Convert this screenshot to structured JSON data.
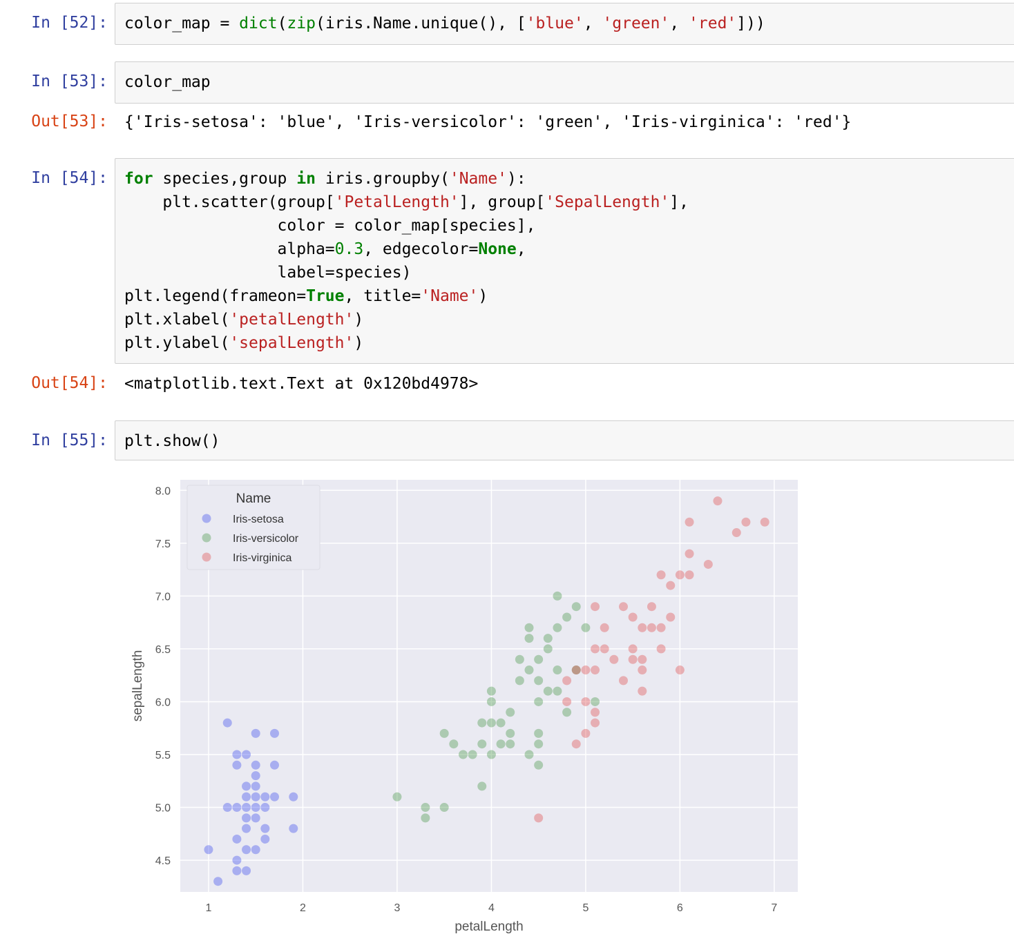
{
  "cells": {
    "c52": {
      "prompt": "In [52]:",
      "code": "color_map = dict(zip(iris.Name.unique(), ['blue', 'green', 'red']))"
    },
    "c53": {
      "prompt": "In [53]:",
      "code": "color_map",
      "out_prompt": "Out[53]:",
      "output": "{'Iris-setosa': 'blue', 'Iris-versicolor': 'green', 'Iris-virginica': 'red'}"
    },
    "c54": {
      "prompt": "In [54]:",
      "code_lines": [
        "for species,group in iris.groupby('Name'):",
        "    plt.scatter(group['PetalLength'], group['SepalLength'],",
        "                color = color_map[species],",
        "                alpha=0.3, edgecolor=None,",
        "                label=species)",
        "plt.legend(frameon=True, title='Name')",
        "plt.xlabel('petalLength')",
        "plt.ylabel('sepalLength')"
      ],
      "out_prompt": "Out[54]:",
      "output": "<matplotlib.text.Text at 0x120bd4978>"
    },
    "c55": {
      "prompt": "In [55]:",
      "code": "plt.show()"
    }
  },
  "chart_data": {
    "type": "scatter",
    "xlabel": "petalLength",
    "ylabel": "sepalLength",
    "xlim": [
      0.7,
      7.25
    ],
    "ylim": [
      4.2,
      8.1
    ],
    "xticks": [
      "1",
      "2",
      "3",
      "4",
      "5",
      "6",
      "7"
    ],
    "yticks": [
      "4.5",
      "5.0",
      "5.5",
      "6.0",
      "6.5",
      "7.0",
      "7.5",
      "8.0"
    ],
    "grid": true,
    "legend": {
      "title": "Name",
      "placement": "top-left"
    },
    "series": [
      {
        "name": "Iris-setosa",
        "color": "#2233ee",
        "points": [
          [
            1.0,
            4.6
          ],
          [
            1.1,
            4.3
          ],
          [
            1.2,
            5.8
          ],
          [
            1.2,
            5.0
          ],
          [
            1.3,
            4.4
          ],
          [
            1.3,
            4.5
          ],
          [
            1.3,
            4.7
          ],
          [
            1.3,
            5.0
          ],
          [
            1.3,
            5.4
          ],
          [
            1.3,
            5.5
          ],
          [
            1.4,
            4.4
          ],
          [
            1.4,
            4.6
          ],
          [
            1.4,
            4.8
          ],
          [
            1.4,
            4.9
          ],
          [
            1.4,
            5.0
          ],
          [
            1.4,
            5.1
          ],
          [
            1.4,
            5.2
          ],
          [
            1.4,
            5.5
          ],
          [
            1.5,
            4.6
          ],
          [
            1.5,
            4.9
          ],
          [
            1.5,
            5.0
          ],
          [
            1.5,
            5.1
          ],
          [
            1.5,
            5.2
          ],
          [
            1.5,
            5.3
          ],
          [
            1.5,
            5.4
          ],
          [
            1.5,
            5.7
          ],
          [
            1.6,
            4.7
          ],
          [
            1.6,
            4.8
          ],
          [
            1.6,
            5.0
          ],
          [
            1.6,
            5.1
          ],
          [
            1.7,
            5.1
          ],
          [
            1.7,
            5.4
          ],
          [
            1.7,
            5.7
          ],
          [
            1.9,
            4.8
          ],
          [
            1.9,
            5.1
          ]
        ]
      },
      {
        "name": "Iris-versicolor",
        "color": "#2d8a2d",
        "points": [
          [
            3.0,
            5.1
          ],
          [
            3.3,
            4.9
          ],
          [
            3.3,
            5.0
          ],
          [
            3.5,
            5.0
          ],
          [
            3.5,
            5.7
          ],
          [
            3.6,
            5.6
          ],
          [
            3.7,
            5.5
          ],
          [
            3.8,
            5.5
          ],
          [
            3.9,
            5.2
          ],
          [
            3.9,
            5.6
          ],
          [
            3.9,
            5.8
          ],
          [
            4.0,
            5.5
          ],
          [
            4.0,
            5.8
          ],
          [
            4.0,
            6.0
          ],
          [
            4.0,
            6.1
          ],
          [
            4.1,
            5.6
          ],
          [
            4.1,
            5.8
          ],
          [
            4.2,
            5.6
          ],
          [
            4.2,
            5.7
          ],
          [
            4.2,
            5.9
          ],
          [
            4.3,
            6.2
          ],
          [
            4.3,
            6.4
          ],
          [
            4.4,
            5.5
          ],
          [
            4.4,
            6.3
          ],
          [
            4.4,
            6.6
          ],
          [
            4.4,
            6.7
          ],
          [
            4.5,
            5.4
          ],
          [
            4.5,
            5.6
          ],
          [
            4.5,
            5.7
          ],
          [
            4.5,
            6.0
          ],
          [
            4.5,
            6.2
          ],
          [
            4.5,
            6.4
          ],
          [
            4.6,
            6.1
          ],
          [
            4.6,
            6.5
          ],
          [
            4.6,
            6.6
          ],
          [
            4.7,
            6.1
          ],
          [
            4.7,
            6.3
          ],
          [
            4.7,
            6.7
          ],
          [
            4.7,
            7.0
          ],
          [
            4.8,
            5.9
          ],
          [
            4.8,
            6.8
          ],
          [
            4.9,
            6.3
          ],
          [
            4.9,
            6.9
          ],
          [
            5.0,
            6.7
          ],
          [
            5.1,
            6.0
          ]
        ]
      },
      {
        "name": "Iris-virginica",
        "color": "#dd3333",
        "points": [
          [
            4.5,
            4.9
          ],
          [
            4.8,
            6.0
          ],
          [
            4.8,
            6.2
          ],
          [
            4.9,
            5.6
          ],
          [
            4.9,
            6.3
          ],
          [
            5.0,
            5.7
          ],
          [
            5.0,
            6.0
          ],
          [
            5.0,
            6.3
          ],
          [
            5.1,
            5.8
          ],
          [
            5.1,
            5.9
          ],
          [
            5.1,
            6.3
          ],
          [
            5.1,
            6.5
          ],
          [
            5.1,
            6.9
          ],
          [
            5.2,
            6.5
          ],
          [
            5.2,
            6.7
          ],
          [
            5.3,
            6.4
          ],
          [
            5.4,
            6.2
          ],
          [
            5.4,
            6.9
          ],
          [
            5.5,
            6.4
          ],
          [
            5.5,
            6.5
          ],
          [
            5.5,
            6.8
          ],
          [
            5.6,
            6.1
          ],
          [
            5.6,
            6.3
          ],
          [
            5.6,
            6.4
          ],
          [
            5.6,
            6.7
          ],
          [
            5.7,
            6.7
          ],
          [
            5.7,
            6.9
          ],
          [
            5.8,
            6.5
          ],
          [
            5.8,
            6.7
          ],
          [
            5.8,
            7.2
          ],
          [
            5.9,
            6.8
          ],
          [
            5.9,
            7.1
          ],
          [
            6.0,
            6.3
          ],
          [
            6.0,
            7.2
          ],
          [
            6.1,
            7.2
          ],
          [
            6.1,
            7.4
          ],
          [
            6.1,
            7.7
          ],
          [
            6.3,
            7.3
          ],
          [
            6.4,
            7.9
          ],
          [
            6.6,
            7.6
          ],
          [
            6.7,
            7.7
          ],
          [
            6.9,
            7.7
          ]
        ]
      }
    ]
  }
}
